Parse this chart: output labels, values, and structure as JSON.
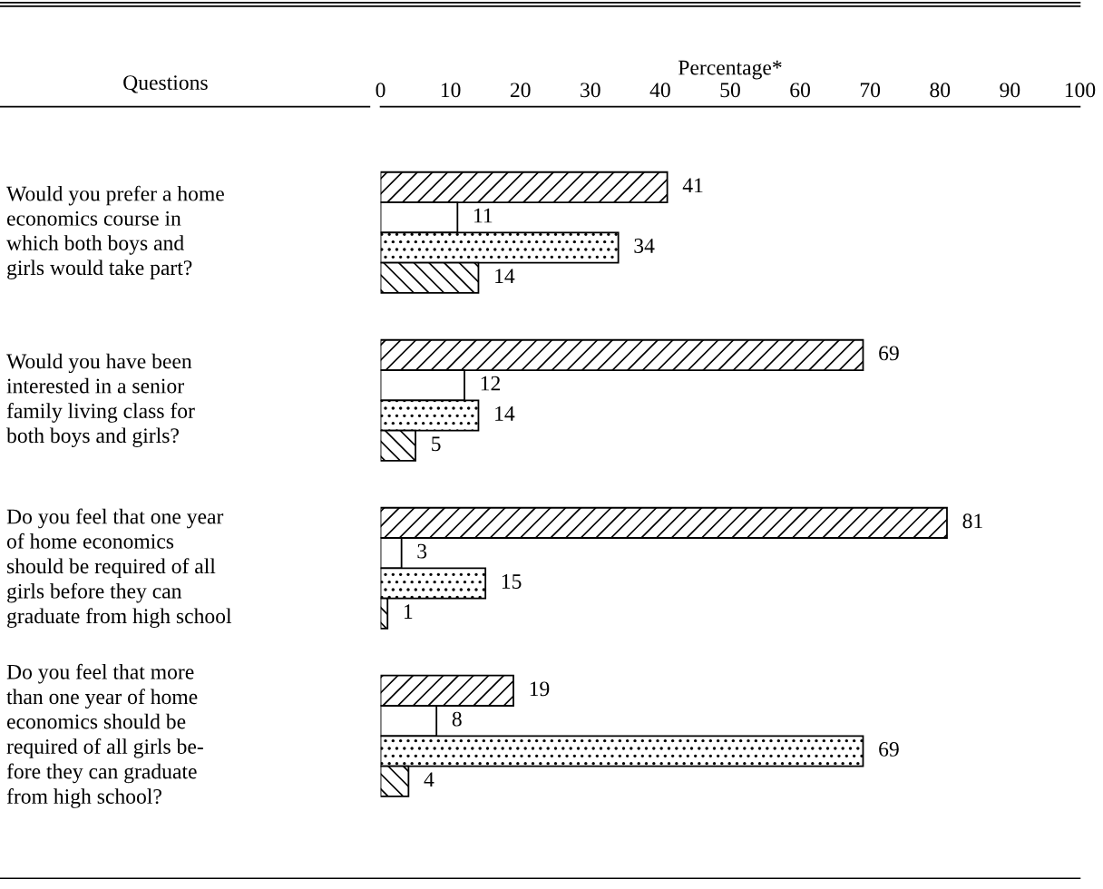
{
  "chart_data": {
    "type": "bar",
    "orientation": "horizontal",
    "xlabel": "Percentage*",
    "ylabel": "Questions",
    "categories": [
      "Would you prefer a home\neconomics course in\nwhich both boys and\ngirls would take part?",
      "Would you have been\ninterested in a senior\nfamily living class for\nboth boys and girls?",
      "Do you feel that one year\nof home economics\nshould be required of all\ngirls before they can\ngraduate from high school",
      "Do you feel that more\nthan one year of home\neconomics should be\nrequired of all girls be-\nfore they can graduate\nfrom high school?"
    ],
    "series": [
      {
        "color": "#000000",
        "values": [
          41,
          69,
          81,
          19
        ]
      },
      {
        "color": "#ffffff",
        "values": [
          11,
          12,
          3,
          8
        ]
      },
      {
        "color": "#000000",
        "values": [
          34,
          14,
          15,
          69
        ]
      },
      {
        "color": "#000000",
        "values": [
          14,
          5,
          1,
          4
        ]
      }
    ],
    "xlim": [
      0,
      100
    ],
    "xticks": [
      0,
      10,
      20,
      30,
      40,
      50,
      60,
      70,
      80,
      90,
      100
    ],
    "data_labels": true,
    "grid": false,
    "legend": false
  }
}
